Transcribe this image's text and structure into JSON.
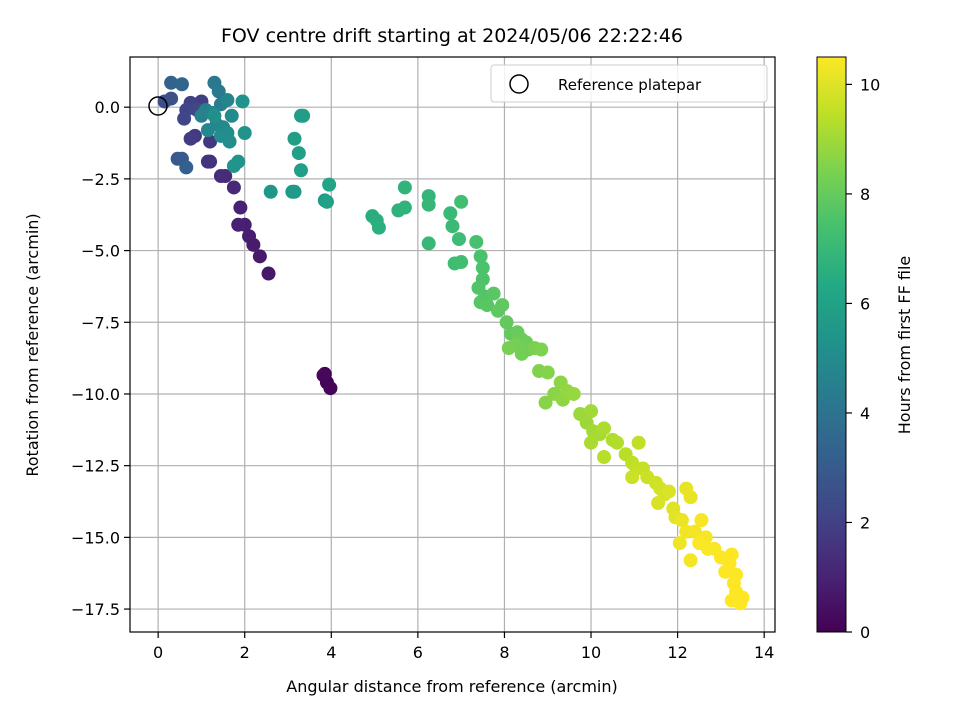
{
  "chart_data": {
    "type": "scatter",
    "title": "FOV centre drift starting at 2024/05/06 22:22:46",
    "xlabel": "Angular distance from reference (arcmin)",
    "ylabel": "Rotation from reference (arcmin)",
    "xlim": [
      -0.65,
      14.25
    ],
    "ylim": [
      -18.3,
      1.75
    ],
    "xticks": [
      0,
      2,
      4,
      6,
      8,
      10,
      12,
      14
    ],
    "yticks": [
      0.0,
      -2.5,
      -5.0,
      -7.5,
      -10.0,
      -12.5,
      -15.0,
      -17.5
    ],
    "grid": true,
    "legend": {
      "placement": "top-right",
      "entries": [
        "Reference platepar"
      ]
    },
    "reference_point": {
      "x": 0,
      "y": 0
    },
    "colorbar": {
      "label": "Hours from first FF file",
      "range": [
        0,
        10.5
      ],
      "ticks": [
        0,
        2,
        4,
        6,
        8,
        10
      ],
      "colormap": "viridis"
    },
    "points": [
      [
        3.85,
        -9.3,
        0.05
      ],
      [
        3.9,
        -9.6,
        0.1
      ],
      [
        3.98,
        -9.8,
        0.15
      ],
      [
        3.82,
        -9.35,
        0.2
      ],
      [
        2.55,
        -5.8,
        0.7
      ],
      [
        2.35,
        -5.2,
        0.75
      ],
      [
        2.2,
        -4.8,
        0.8
      ],
      [
        2.1,
        -4.5,
        0.85
      ],
      [
        2.0,
        -4.1,
        0.9
      ],
      [
        1.85,
        -4.1,
        0.95
      ],
      [
        1.9,
        -3.5,
        1.0
      ],
      [
        1.75,
        -2.8,
        1.2
      ],
      [
        1.55,
        -2.4,
        1.25
      ],
      [
        1.45,
        -2.4,
        1.3
      ],
      [
        1.2,
        -1.9,
        1.5
      ],
      [
        1.15,
        -1.9,
        1.55
      ],
      [
        1.2,
        -1.2,
        1.7
      ],
      [
        0.85,
        -1.0,
        1.8
      ],
      [
        0.75,
        -1.1,
        1.85
      ],
      [
        1.0,
        0.2,
        1.9
      ],
      [
        0.75,
        0.15,
        2.0
      ],
      [
        0.65,
        -0.1,
        2.1
      ],
      [
        0.6,
        -0.4,
        2.2
      ],
      [
        0.9,
        -0.1,
        2.3
      ],
      [
        0.15,
        0.2,
        2.5
      ],
      [
        0.3,
        0.3,
        2.6
      ],
      [
        0.45,
        -1.8,
        2.9
      ],
      [
        0.55,
        -1.8,
        3.0
      ],
      [
        0.65,
        -2.1,
        3.2
      ],
      [
        0.3,
        0.85,
        3.3
      ],
      [
        0.55,
        0.8,
        3.4
      ],
      [
        1.3,
        0.85,
        4.2
      ],
      [
        1.4,
        0.55,
        4.3
      ],
      [
        1.45,
        0.1,
        4.4
      ],
      [
        1.1,
        -0.1,
        4.5
      ],
      [
        1.0,
        -0.3,
        4.6
      ],
      [
        1.25,
        -0.2,
        4.7
      ],
      [
        1.6,
        0.25,
        4.75
      ],
      [
        1.35,
        -0.6,
        4.8
      ],
      [
        1.15,
        -0.8,
        4.85
      ],
      [
        1.5,
        -0.7,
        4.9
      ],
      [
        1.7,
        -0.3,
        5.0
      ],
      [
        1.6,
        -0.9,
        5.05
      ],
      [
        1.45,
        -1.0,
        5.1
      ],
      [
        1.65,
        -1.2,
        5.15
      ],
      [
        1.3,
        -0.3,
        5.2
      ],
      [
        1.95,
        0.2,
        5.3
      ],
      [
        2.0,
        -0.9,
        5.35
      ],
      [
        1.75,
        -2.05,
        5.4
      ],
      [
        1.85,
        -1.9,
        5.45
      ],
      [
        2.6,
        -2.95,
        5.5
      ],
      [
        3.15,
        -2.95,
        5.55
      ],
      [
        3.1,
        -2.95,
        5.6
      ],
      [
        3.85,
        -3.25,
        5.7
      ],
      [
        3.3,
        -0.3,
        5.75
      ],
      [
        3.35,
        -0.3,
        5.8
      ],
      [
        3.15,
        -1.1,
        5.85
      ],
      [
        3.25,
        -1.6,
        5.9
      ],
      [
        3.3,
        -2.2,
        5.95
      ],
      [
        3.9,
        -3.3,
        6.0
      ],
      [
        3.95,
        -2.7,
        6.1
      ],
      [
        4.95,
        -3.8,
        6.5
      ],
      [
        5.05,
        -3.95,
        6.55
      ],
      [
        5.1,
        -4.2,
        6.6
      ],
      [
        5.55,
        -3.6,
        6.7
      ],
      [
        5.7,
        -3.5,
        6.75
      ],
      [
        5.7,
        -2.8,
        6.8
      ],
      [
        6.25,
        -3.1,
        6.9
      ],
      [
        6.25,
        -3.4,
        6.95
      ],
      [
        6.25,
        -4.75,
        7.0
      ],
      [
        6.75,
        -3.7,
        7.05
      ],
      [
        6.8,
        -4.15,
        7.1
      ],
      [
        6.95,
        -4.6,
        7.15
      ],
      [
        6.85,
        -5.45,
        7.2
      ],
      [
        7.0,
        -5.4,
        7.25
      ],
      [
        7.0,
        -3.3,
        7.3
      ],
      [
        7.35,
        -4.7,
        7.4
      ],
      [
        7.45,
        -5.2,
        7.45
      ],
      [
        7.5,
        -5.6,
        7.5
      ],
      [
        7.5,
        -6.0,
        7.55
      ],
      [
        7.4,
        -6.3,
        7.6
      ],
      [
        7.55,
        -6.6,
        7.65
      ],
      [
        7.45,
        -6.8,
        7.7
      ],
      [
        7.6,
        -6.9,
        7.75
      ],
      [
        7.75,
        -6.5,
        7.8
      ],
      [
        7.95,
        -6.9,
        7.85
      ],
      [
        7.85,
        -7.1,
        7.9
      ],
      [
        8.05,
        -7.5,
        7.95
      ],
      [
        8.15,
        -7.9,
        8.0
      ],
      [
        8.3,
        -7.85,
        8.05
      ],
      [
        8.4,
        -8.1,
        8.1
      ],
      [
        8.5,
        -8.2,
        8.15
      ],
      [
        8.55,
        -8.45,
        8.2
      ],
      [
        8.4,
        -8.6,
        8.25
      ],
      [
        8.25,
        -8.3,
        8.3
      ],
      [
        8.1,
        -8.4,
        8.35
      ],
      [
        8.7,
        -8.4,
        8.4
      ],
      [
        8.85,
        -8.45,
        8.45
      ],
      [
        8.8,
        -9.2,
        8.5
      ],
      [
        9.0,
        -9.25,
        8.55
      ],
      [
        8.95,
        -10.3,
        8.6
      ],
      [
        9.15,
        -10.0,
        8.65
      ],
      [
        9.3,
        -9.6,
        8.7
      ],
      [
        9.35,
        -10.2,
        8.75
      ],
      [
        9.45,
        -9.9,
        8.8
      ],
      [
        9.6,
        -10.0,
        8.85
      ],
      [
        9.75,
        -10.7,
        8.9
      ],
      [
        9.9,
        -11.0,
        8.95
      ],
      [
        10.0,
        -10.6,
        9.0
      ],
      [
        10.05,
        -11.3,
        9.05
      ],
      [
        10.2,
        -11.4,
        9.1
      ],
      [
        10.0,
        -11.7,
        9.15
      ],
      [
        10.3,
        -11.2,
        9.2
      ],
      [
        10.5,
        -11.6,
        9.25
      ],
      [
        10.6,
        -11.7,
        9.3
      ],
      [
        10.3,
        -12.2,
        9.35
      ],
      [
        10.8,
        -12.1,
        9.4
      ],
      [
        10.95,
        -12.4,
        9.45
      ],
      [
        11.1,
        -11.7,
        9.5
      ],
      [
        11.05,
        -12.6,
        9.55
      ],
      [
        11.2,
        -12.6,
        9.6
      ],
      [
        10.95,
        -12.9,
        9.65
      ],
      [
        11.3,
        -12.9,
        9.7
      ],
      [
        11.5,
        -13.1,
        9.75
      ],
      [
        11.6,
        -13.3,
        9.8
      ],
      [
        11.7,
        -13.5,
        9.85
      ],
      [
        11.55,
        -13.8,
        9.9
      ],
      [
        11.8,
        -13.4,
        9.95
      ],
      [
        11.9,
        -14.0,
        10.0
      ],
      [
        11.95,
        -14.3,
        10.05
      ],
      [
        12.2,
        -13.3,
        10.1
      ],
      [
        12.3,
        -13.6,
        10.15
      ],
      [
        12.1,
        -14.4,
        10.2
      ],
      [
        12.05,
        -15.2,
        10.25
      ],
      [
        12.2,
        -14.8,
        10.3
      ],
      [
        12.4,
        -14.8,
        10.35
      ],
      [
        12.3,
        -15.8,
        10.35
      ],
      [
        12.55,
        -14.4,
        10.4
      ],
      [
        12.65,
        -15.0,
        10.4
      ],
      [
        12.7,
        -15.4,
        10.45
      ],
      [
        12.5,
        -15.2,
        10.45
      ],
      [
        13.0,
        -15.7,
        10.5
      ],
      [
        13.2,
        -15.9,
        10.5
      ],
      [
        13.1,
        -16.2,
        10.5
      ],
      [
        13.35,
        -16.3,
        10.5
      ],
      [
        13.3,
        -16.6,
        10.5
      ],
      [
        13.35,
        -16.9,
        10.5
      ],
      [
        13.25,
        -17.2,
        10.5
      ],
      [
        13.45,
        -17.3,
        10.5
      ],
      [
        13.5,
        -17.1,
        10.5
      ],
      [
        13.25,
        -15.6,
        10.5
      ],
      [
        12.85,
        -15.4,
        10.45
      ]
    ]
  }
}
